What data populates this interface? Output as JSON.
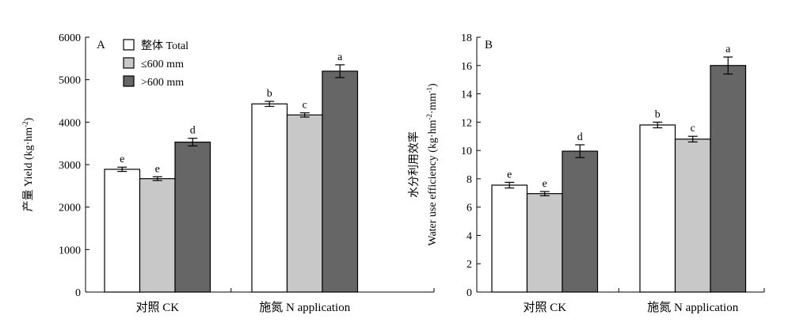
{
  "chart_data": [
    {
      "type": "bar",
      "panel_label": "A",
      "ylabel_parts": [
        "产量 Yield (kg·hm",
        "-2",
        ")"
      ],
      "ylim": [
        0,
        6000
      ],
      "yticks": [
        0,
        1000,
        2000,
        3000,
        4000,
        5000,
        6000
      ],
      "categories": [
        "对照 CK",
        "施氮 N application"
      ],
      "series": [
        {
          "name": "整体 Total",
          "color": "#ffffff",
          "values": [
            2890,
            4430
          ],
          "errors": [
            50,
            60
          ],
          "letters": [
            "e",
            "b"
          ]
        },
        {
          "name": "≤600 mm",
          "color": "#c8c8c8",
          "values": [
            2670,
            4170
          ],
          "errors": [
            45,
            50
          ],
          "letters": [
            "e",
            "c"
          ]
        },
        {
          "name": ">600 mm",
          "color": "#666666",
          "values": [
            3530,
            5200
          ],
          "errors": [
            90,
            150
          ],
          "letters": [
            "d",
            "a"
          ]
        }
      ],
      "legend": {
        "position": "top-left",
        "items": [
          "整体 Total",
          "≤600 mm",
          ">600 mm"
        ]
      }
    },
    {
      "type": "bar",
      "panel_label": "B",
      "ylabel_line1": "水分利用效率",
      "ylabel_line2_parts": [
        "Water use efficiency (kg·hm",
        "-2",
        "·mm",
        "-1",
        ")"
      ],
      "ylim": [
        0,
        18
      ],
      "yticks": [
        0,
        2,
        4,
        6,
        8,
        10,
        12,
        14,
        16,
        18
      ],
      "categories": [
        "对照 CK",
        "施氮 N application"
      ],
      "series": [
        {
          "name": "整体 Total",
          "color": "#ffffff",
          "values": [
            7.55,
            11.8
          ],
          "errors": [
            0.2,
            0.2
          ],
          "letters": [
            "e",
            "b"
          ]
        },
        {
          "name": "≤600 mm",
          "color": "#c8c8c8",
          "values": [
            6.95,
            10.8
          ],
          "errors": [
            0.15,
            0.2
          ],
          "letters": [
            "e",
            "c"
          ]
        },
        {
          "name": ">600 mm",
          "color": "#666666",
          "values": [
            9.95,
            16.0
          ],
          "errors": [
            0.45,
            0.6
          ],
          "letters": [
            "d",
            "a"
          ]
        }
      ]
    }
  ]
}
